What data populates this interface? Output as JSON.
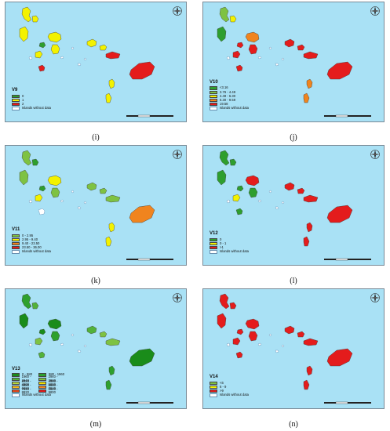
{
  "colors": {
    "sea": "#a9e1f5",
    "green": "#2e9e2e",
    "lightgreen": "#7ec242",
    "yellow": "#f3f200",
    "orange": "#f0841e",
    "red": "#e41c1c",
    "nodata": "#ffffff"
  },
  "panels": [
    {
      "caption": "(i)",
      "legend_title": "V9",
      "legend": [
        {
          "label": "0",
          "color": "green"
        },
        {
          "label": "1",
          "color": "yellow"
        },
        {
          "label": "2",
          "color": "red"
        }
      ],
      "nodata_label": "Islands without data",
      "island_colors": [
        "yellow",
        "yellow",
        "yellow",
        "yellow",
        "yellow",
        "green",
        "yellow",
        "nodata",
        "red",
        "nodata",
        "nodata",
        "yellow",
        "yellow",
        "red",
        "red",
        "yellow",
        "yellow"
      ]
    },
    {
      "caption": "(j)",
      "legend_title": "V10",
      "legend": [
        {
          "label": "<3.16",
          "color": "green"
        },
        {
          "label": "3.76 - 4.49",
          "color": "lightgreen"
        },
        {
          "label": "4.49 - 6.30",
          "color": "yellow"
        },
        {
          "label": "6.30 - 9.59",
          "color": "orange"
        },
        {
          "label": "19.58",
          "color": "red"
        }
      ],
      "nodata_label": "Islands without data",
      "island_colors": [
        "lightgreen",
        "yellow",
        "green",
        "orange",
        "red",
        "red",
        "red",
        "nodata",
        "red",
        "nodata",
        "nodata",
        "red",
        "red",
        "red",
        "red",
        "orange",
        "orange"
      ]
    },
    {
      "caption": "(k)",
      "legend_title": "V11",
      "legend": [
        {
          "label": "0 - 2.95",
          "color": "lightgreen"
        },
        {
          "label": "2.95 - 9.40",
          "color": "yellow"
        },
        {
          "label": "9.40 - 23.50",
          "color": "orange"
        },
        {
          "label": "23.50 - 36.00",
          "color": "red"
        }
      ],
      "nodata_label": "Islands without data",
      "island_colors": [
        "lightgreen",
        "green",
        "lightgreen",
        "yellow",
        "lightgreen",
        "green",
        "yellow",
        "nodata",
        "nodata",
        "nodata",
        "nodata",
        "lightgreen",
        "lightgreen",
        "lightgreen",
        "orange",
        "yellow",
        "yellow"
      ]
    },
    {
      "caption": "(l)",
      "legend_title": "V12",
      "legend": [
        {
          "label": "0",
          "color": "green"
        },
        {
          "label": "0 - 1",
          "color": "yellow"
        },
        {
          "label": ">1",
          "color": "red"
        }
      ],
      "nodata_label": "Islands without data",
      "island_colors": [
        "green",
        "green",
        "green",
        "red",
        "green",
        "green",
        "yellow",
        "nodata",
        "green",
        "nodata",
        "nodata",
        "red",
        "red",
        "red",
        "red",
        "red",
        "red"
      ]
    },
    {
      "caption": "(m)",
      "legend_title": "V13",
      "legend": [
        {
          "label": "0 - 980",
          "color": "#1a8c1a"
        },
        {
          "label": "980 - 1960",
          "color": "#2ea02e"
        },
        {
          "label": "1960 - 2940",
          "color": "#52b23a"
        },
        {
          "label": "2940 - 3920",
          "color": "#7ec242"
        },
        {
          "label": "3920 - 4900",
          "color": "#b6d640"
        },
        {
          "label": "4900 - 5880",
          "color": "#f3e000"
        },
        {
          "label": "5880 - 6860",
          "color": "#f7b81a"
        },
        {
          "label": "6860 - 7840",
          "color": "#f0841e"
        },
        {
          "label": "7840 - 8820",
          "color": "#ea4a1c"
        },
        {
          "label": "8820 - 9800",
          "color": "#e41c1c"
        }
      ],
      "nodata_label": "Islands without data",
      "island_colors": [
        "#2ea02e",
        "#52b23a",
        "#1a8c1a",
        "#1a8c1a",
        "#2ea02e",
        "#1a8c1a",
        "#7ec242",
        "nodata",
        "#52b23a",
        "nodata",
        "nodata",
        "#52b23a",
        "#7ec242",
        "#7ec242",
        "#1a8c1a",
        "#2ea02e",
        "#2ea02e"
      ]
    },
    {
      "caption": "(n)",
      "legend_title": "V14",
      "legend": [
        {
          "label": "<6",
          "color": "lightgreen"
        },
        {
          "label": "6 - 9",
          "color": "yellow"
        },
        {
          "label": ">9",
          "color": "red"
        }
      ],
      "nodata_label": "Islands without data",
      "island_colors": [
        "red",
        "red",
        "red",
        "red",
        "red",
        "red",
        "red",
        "nodata",
        "red",
        "nodata",
        "nodata",
        "red",
        "red",
        "red",
        "red",
        "red",
        "red"
      ]
    }
  ]
}
